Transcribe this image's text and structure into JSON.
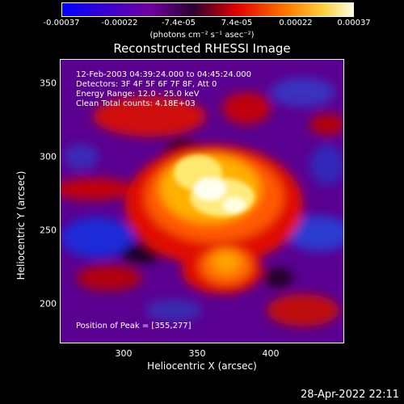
{
  "colorbar": {
    "ticks": [
      "-0.00037",
      "-0.00022",
      "-7.4e-05",
      "7.4e-05",
      "0.00022",
      "0.00037"
    ],
    "units": "(photons cm⁻² s⁻¹ asec⁻²)"
  },
  "title": "Reconstructed RHESSI Image",
  "annotations": {
    "time": "12-Feb-2003 04:39:24.000 to 04:45:24.000",
    "detectors": "Detectors: 3F 4F 5F 6F 7F 8F, Att 0",
    "energy": "Energy Range: 12.0 - 25.0 keV",
    "clean": "Clean     Total counts: 4.18E+03",
    "peak": "Position of Peak = [355,277]"
  },
  "axes": {
    "xlabel": "Heliocentric X (arcsec)",
    "ylabel": "Heliocentric Y (arcsec)",
    "xticks": [
      "300",
      "350",
      "400"
    ],
    "yticks": [
      "350",
      "300",
      "250",
      "200"
    ]
  },
  "timestamp": "28-Apr-2022 22:11",
  "colors": {
    "min": "#0000ff",
    "mid": "#7000a0",
    "red": "#e00000",
    "orange": "#ff8000",
    "max": "#ffffe0"
  }
}
